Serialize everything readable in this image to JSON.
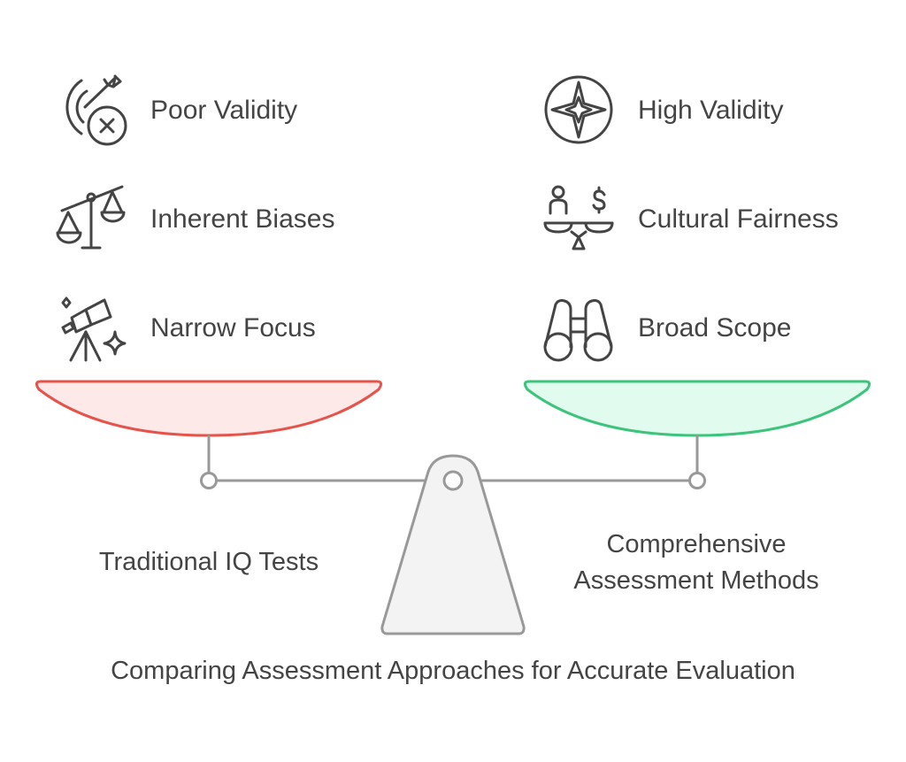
{
  "title": "Comparing Assessment Approaches for Accurate Evaluation",
  "left": {
    "label": "Traditional IQ Tests",
    "color": "#e5534b",
    "fill": "#fde9e8",
    "items": [
      {
        "label": "Poor Validity",
        "icon": "target-x-icon"
      },
      {
        "label": "Inherent Biases",
        "icon": "tilted-scale-icon"
      },
      {
        "label": "Narrow Focus",
        "icon": "telescope-icon"
      }
    ]
  },
  "right": {
    "label_line1": "Comprehensive",
    "label_line2": "Assessment Methods",
    "color": "#3cc47c",
    "fill": "#e1fbee",
    "items": [
      {
        "label": "High Validity",
        "icon": "compass-icon"
      },
      {
        "label": "Cultural Fairness",
        "icon": "balance-person-dollar-icon"
      },
      {
        "label": "Broad Scope",
        "icon": "binoculars-icon"
      }
    ]
  }
}
